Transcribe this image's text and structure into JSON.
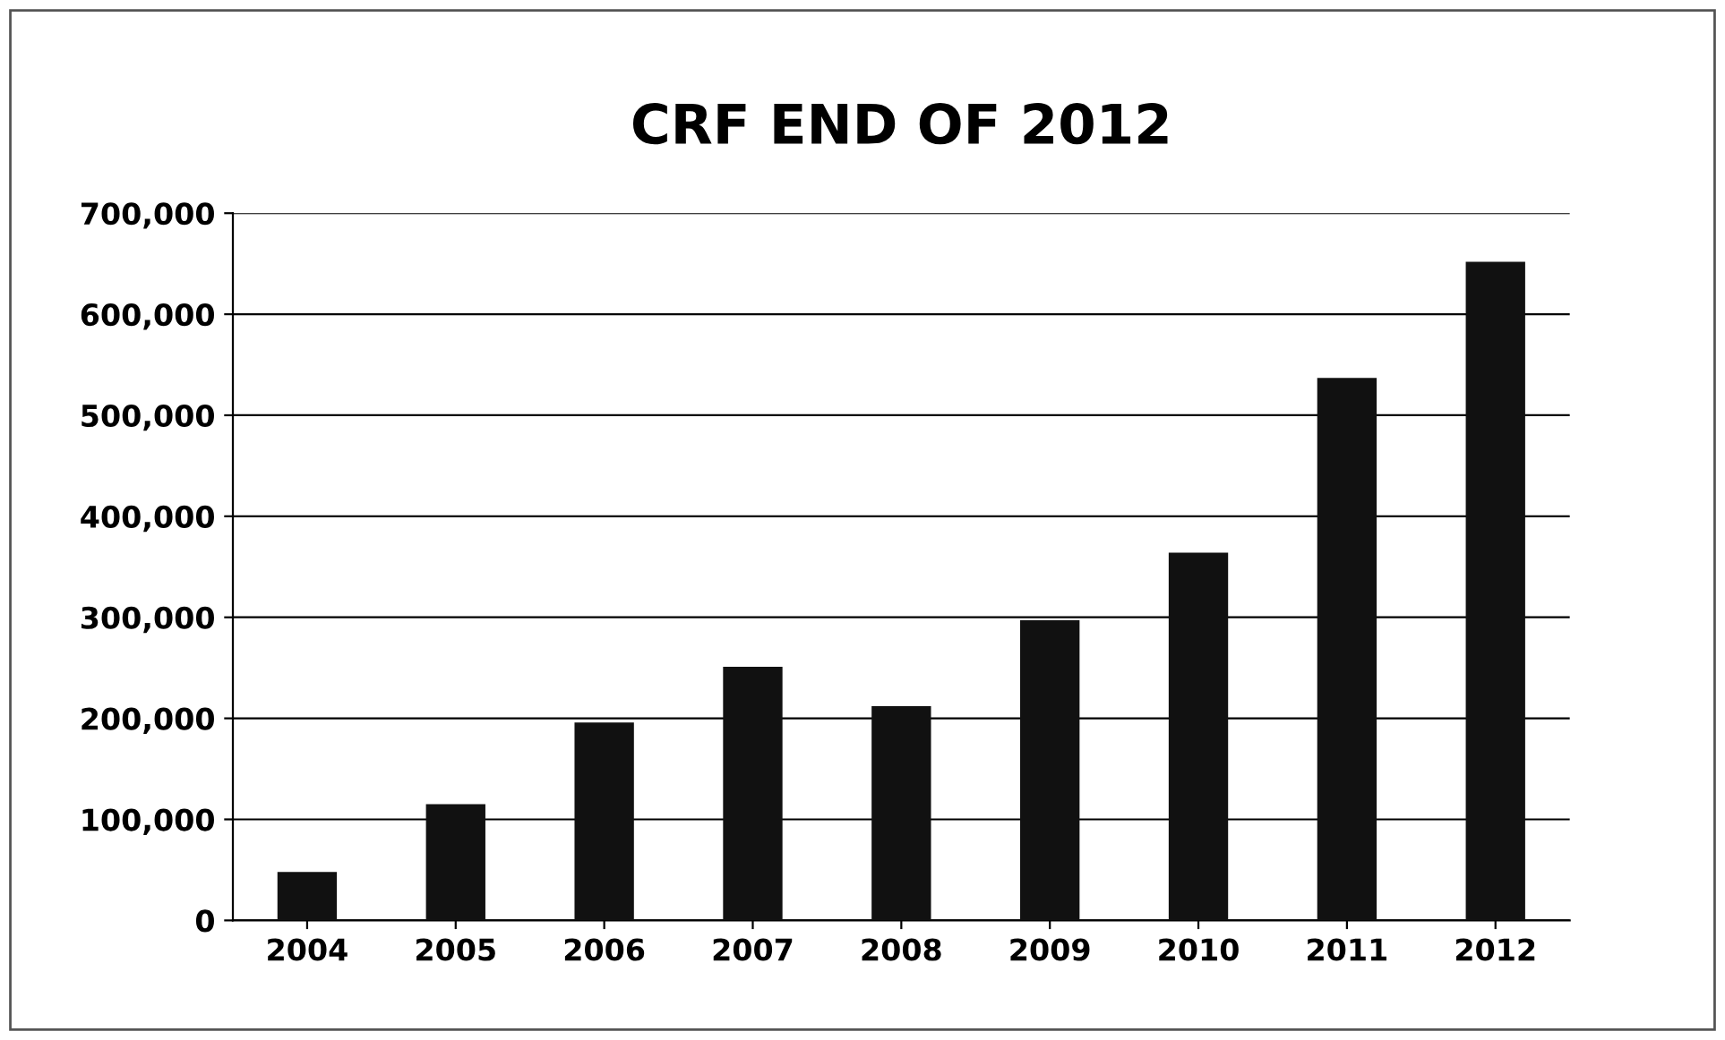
{
  "chart_data": {
    "type": "bar",
    "title": "CRF END OF 2012",
    "categories": [
      "2004",
      "2005",
      "2006",
      "2007",
      "2008",
      "2009",
      "2010",
      "2011",
      "2012"
    ],
    "values": [
      48000,
      115000,
      196000,
      251000,
      212000,
      297000,
      364000,
      537000,
      652000
    ],
    "color": "#111111",
    "ylim": [
      0,
      700000
    ],
    "yticks": [
      {
        "value": 0,
        "label": "0"
      },
      {
        "value": 100000,
        "label": "100,000"
      },
      {
        "value": 200000,
        "label": "200,000"
      },
      {
        "value": 300000,
        "label": "300,000"
      },
      {
        "value": 400000,
        "label": "400,000"
      },
      {
        "value": 500000,
        "label": "500,000"
      },
      {
        "value": 600000,
        "label": "600,000"
      },
      {
        "value": 700000,
        "label": "700,000"
      }
    ],
    "grid": "y"
  }
}
